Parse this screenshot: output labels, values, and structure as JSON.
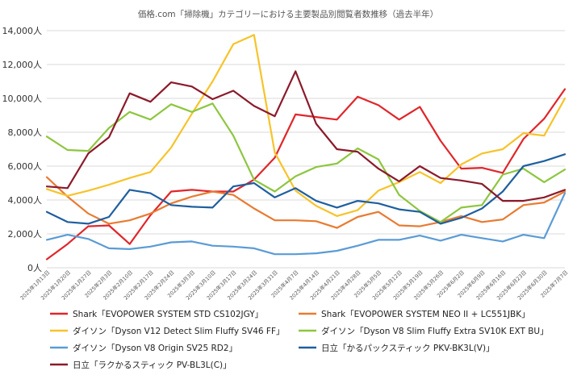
{
  "chart_data": {
    "type": "line",
    "title": "価格.com「掃除機」カテゴリーにおける主要製品別閲覧者数推移（過去半年）",
    "xlabel": "",
    "ylabel": "",
    "ylim": [
      0,
      14000
    ],
    "y_ticks": [
      {
        "value": 0,
        "label": "0人"
      },
      {
        "value": 2000,
        "label": "2,000人"
      },
      {
        "value": 4000,
        "label": "4,000人"
      },
      {
        "value": 6000,
        "label": "6,000人"
      },
      {
        "value": 8000,
        "label": "8,000人"
      },
      {
        "value": 10000,
        "label": "10,000人"
      },
      {
        "value": 12000,
        "label": "12,000人"
      },
      {
        "value": 14000,
        "label": "14,000人"
      }
    ],
    "grid": true,
    "legend_position": "bottom",
    "categories": [
      "2025年1月13日",
      "2025年1月20日",
      "2025年1月27日",
      "2025年2月3日",
      "2025年2月10日",
      "2025年2月17日",
      "2025年2月24日",
      "2025年3月3日",
      "2025年3月10日",
      "2025年3月17日",
      "2025年3月24日",
      "2025年3月31日",
      "2025年4月7日",
      "2025年4月14日",
      "2025年4月21日",
      "2025年4月28日",
      "2025年5月5日",
      "2025年5月12日",
      "2025年5月19日",
      "2025年5月26日",
      "2025年6月2日",
      "2025年6月9日",
      "2025年6月16日",
      "2025年6月23日",
      "2025年6月30日",
      "2025年7月7日"
    ],
    "series": [
      {
        "name": "Shark「EVOPOWER SYSTEM STD CS102JGY」",
        "color": "#e0262b",
        "values": [
          500,
          1400,
          2450,
          2500,
          1400,
          3100,
          4500,
          4600,
          4500,
          4500,
          5200,
          6500,
          9050,
          8900,
          8750,
          10100,
          9600,
          8750,
          9500,
          7500,
          5850,
          5900,
          5600,
          7600,
          8800,
          10550
        ]
      },
      {
        "name": "Shark「EVOPOWER SYSTEM NEO II + LC551JBK」",
        "color": "#e87b32",
        "values": [
          5350,
          4200,
          3200,
          2600,
          2800,
          3200,
          3800,
          4200,
          4500,
          4300,
          3500,
          2800,
          2800,
          2750,
          2350,
          3000,
          3300,
          2500,
          2450,
          2700,
          3050,
          2700,
          2850,
          3700,
          3850,
          4500
        ]
      },
      {
        "name": "ダイソン「Dyson V12 Detect Slim Fluffy SV46 FF」",
        "color": "#f7c32a",
        "values": [
          4650,
          4250,
          4550,
          4900,
          5300,
          5650,
          7100,
          9100,
          11000,
          13200,
          13750,
          6800,
          4550,
          3650,
          3050,
          3400,
          4550,
          5050,
          5650,
          5000,
          6100,
          6750,
          7000,
          7950,
          7800,
          10000
        ]
      },
      {
        "name": "ダイソン「Dyson V8 Slim Fluffy Extra SV10K EXT BU」",
        "color": "#8dc63f",
        "values": [
          7750,
          6950,
          6900,
          8250,
          9200,
          8750,
          9650,
          9200,
          9700,
          7800,
          5200,
          4500,
          5400,
          5950,
          6150,
          7050,
          6400,
          4300,
          3350,
          2700,
          3550,
          3700,
          5500,
          5850,
          5050,
          5800
        ]
      },
      {
        "name": "ダイソン「Dyson V8 Origin SV25 RD2」",
        "color": "#5b9bd5",
        "values": [
          1650,
          1950,
          1700,
          1150,
          1100,
          1250,
          1500,
          1550,
          1300,
          1250,
          1150,
          800,
          800,
          850,
          1000,
          1300,
          1650,
          1650,
          1900,
          1600,
          1950,
          1750,
          1550,
          1950,
          1750,
          4400
        ]
      },
      {
        "name": "日立「かるパックスティック PKV-BK3L(V)」",
        "color": "#1f5f9e",
        "values": [
          3300,
          2700,
          2600,
          3000,
          4600,
          4400,
          3700,
          3600,
          3550,
          4800,
          5000,
          4150,
          4700,
          3950,
          3550,
          3950,
          3800,
          3450,
          3300,
          2600,
          2950,
          3500,
          4500,
          6000,
          6300,
          6700
        ]
      },
      {
        "name": "日立「ラクかるスティック PV-BL3L(C)」",
        "color": "#8b1a2b",
        "values": [
          4800,
          4700,
          6750,
          7700,
          10300,
          9800,
          10950,
          10700,
          9950,
          10450,
          9550,
          8950,
          11600,
          8500,
          7000,
          6850,
          5850,
          5100,
          6000,
          5300,
          5150,
          4950,
          3950,
          3950,
          4150,
          4600
        ]
      }
    ]
  }
}
